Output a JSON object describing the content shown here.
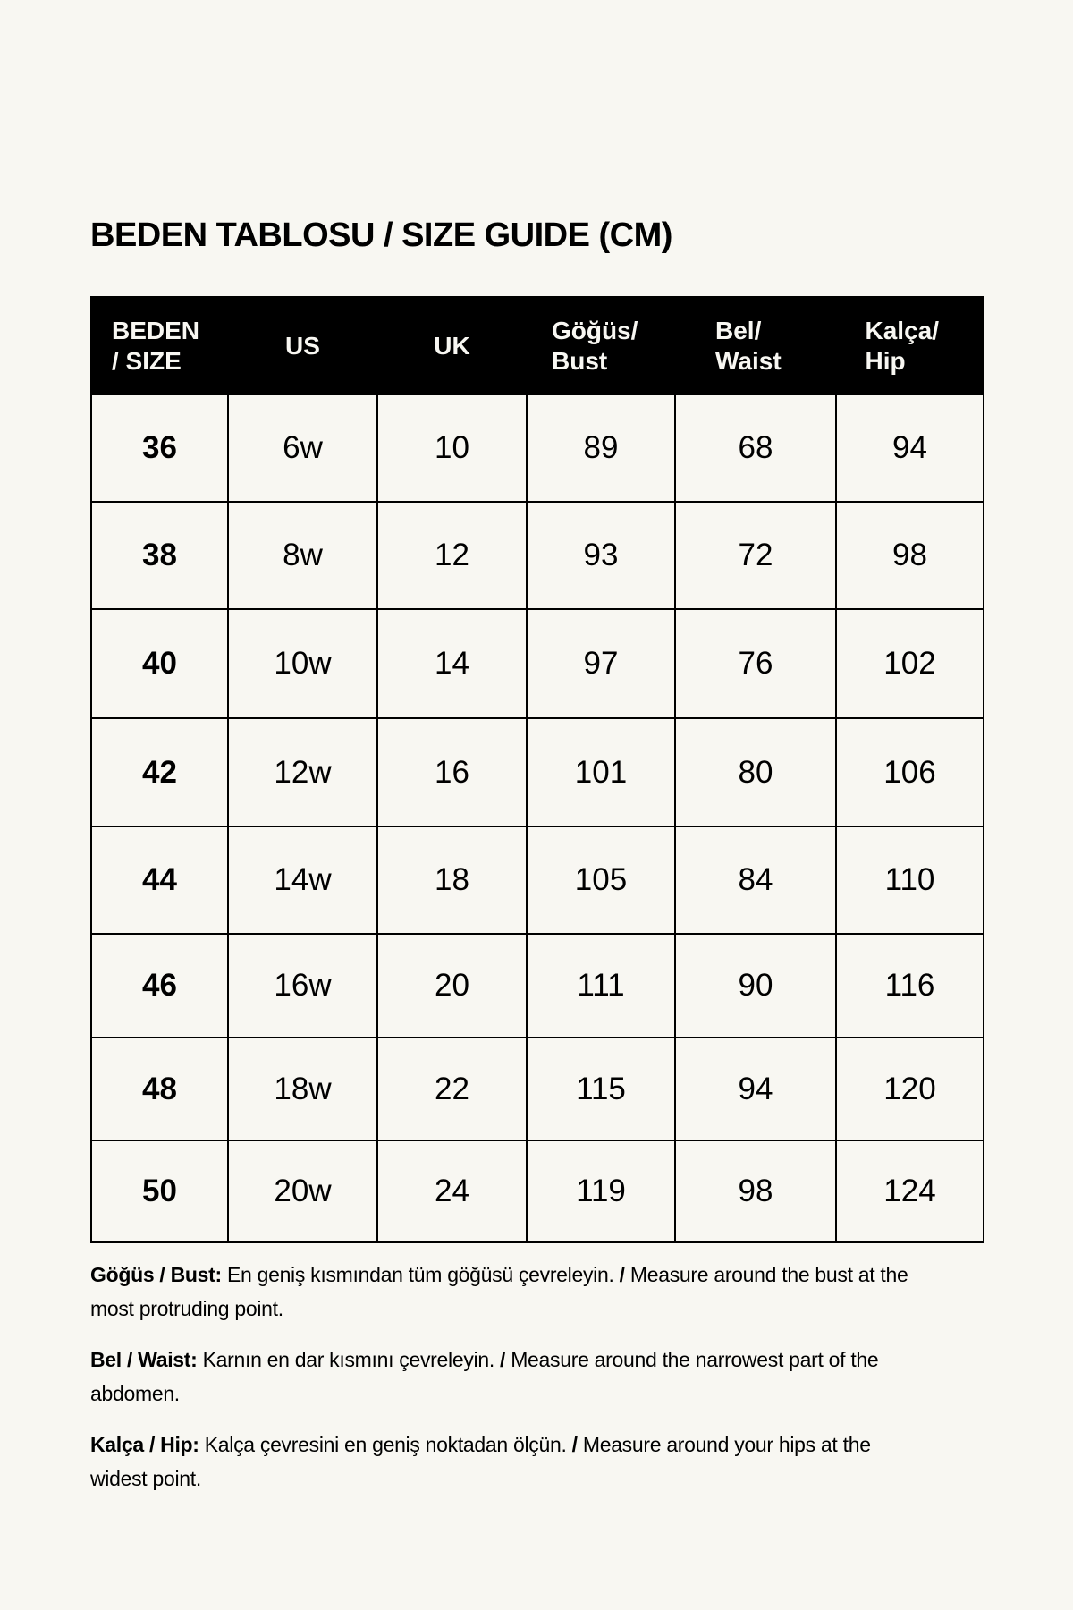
{
  "title": "BEDEN TABLOSU / SIZE GUIDE (CM)",
  "headers": [
    "BEDEN / SIZE",
    "US",
    "UK",
    "Göğüs/ Bust",
    "Bel/ Waist",
    "Kalça/ Hip"
  ],
  "rows": [
    [
      "36",
      "6w",
      "10",
      "89",
      "68",
      "94"
    ],
    [
      "38",
      "8w",
      "12",
      "93",
      "72",
      "98"
    ],
    [
      "40",
      "10w",
      "14",
      "97",
      "76",
      "102"
    ],
    [
      "42",
      "12w",
      "16",
      "101",
      "80",
      "106"
    ],
    [
      "44",
      "14w",
      "18",
      "105",
      "84",
      "110"
    ],
    [
      "46",
      "16w",
      "20",
      "111",
      "90",
      "116"
    ],
    [
      "48",
      "18w",
      "22",
      "115",
      "94",
      "120"
    ],
    [
      "50",
      "20w",
      "24",
      "119",
      "98",
      "124"
    ]
  ],
  "notes": [
    {
      "label": "Göğüs / Bust:",
      "tr": " En geniş kısmından tüm göğüsü çevreleyin. ",
      "sep": "/",
      "en": " Measure around the bust at the most protruding point."
    },
    {
      "label": "Bel / Waist:",
      "tr": " Karnın en dar kısmını çevreleyin. ",
      "sep": "/",
      "en": " Measure around the narrowest part of the abdomen."
    },
    {
      "label": "Kalça / Hip:",
      "tr": " Kalça çevresini en geniş noktadan ölçün. ",
      "sep": "/",
      "en": " Measure around your hips at the widest point."
    }
  ]
}
